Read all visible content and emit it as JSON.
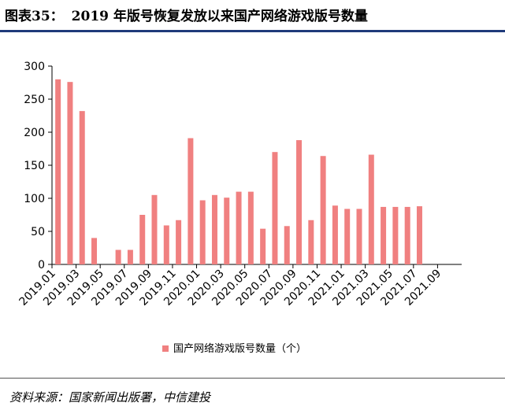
{
  "header": {
    "prefix": "图表35：",
    "title": "2019 年版号恢复发放以来国产网络游戏版号数量"
  },
  "footer": {
    "source": "资料来源：国家新闻出版署，中信建投"
  },
  "colors": {
    "bar": "#f08080",
    "rule": "#1f3a7a"
  },
  "chart_data": {
    "type": "bar",
    "title": "",
    "xlabel": "",
    "ylabel": "",
    "ylim": [
      0,
      300
    ],
    "yticks": [
      0,
      50,
      100,
      150,
      200,
      250,
      300
    ],
    "grid": false,
    "legend_position": "bottom",
    "categories": [
      "2019.01",
      "2019.02",
      "2019.03",
      "2019.04",
      "2019.05",
      "2019.06",
      "2019.07",
      "2019.08",
      "2019.09",
      "2019.10",
      "2019.11",
      "2019.12",
      "2020.01",
      "2020.02",
      "2020.03",
      "2020.04",
      "2020.05",
      "2020.06",
      "2020.07",
      "2020.08",
      "2020.09",
      "2020.10",
      "2020.11",
      "2020.12",
      "2021.01",
      "2021.02",
      "2021.03",
      "2021.04",
      "2021.05",
      "2021.06",
      "2021.07",
      "2021.08",
      "2021.09",
      "2021.10"
    ],
    "xtick_labels": [
      "2019.01",
      "2019.03",
      "2019.05",
      "2019.07",
      "2019.09",
      "2019.11",
      "2020.01",
      "2020.03",
      "2020.05",
      "2020.07",
      "2020.09",
      "2020.11",
      "2021.01",
      "2021.03",
      "2021.05",
      "2021.07",
      "2021.09"
    ],
    "series": [
      {
        "name": "国产网络游戏版号数量（个）",
        "values": [
          280,
          276,
          232,
          40,
          0,
          22,
          22,
          75,
          105,
          59,
          67,
          191,
          97,
          105,
          101,
          110,
          110,
          54,
          170,
          58,
          188,
          67,
          164,
          89,
          84,
          84,
          166,
          87,
          87,
          87,
          88,
          null,
          null,
          null
        ]
      }
    ]
  }
}
